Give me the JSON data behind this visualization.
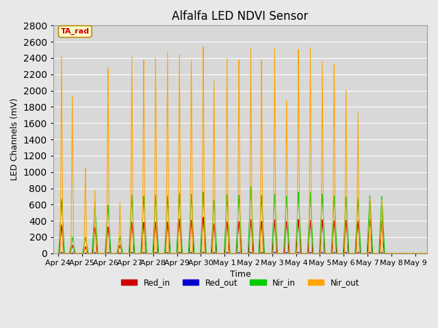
{
  "title": "Alfalfa LED NDVI Sensor",
  "xlabel": "Time",
  "ylabel": "LED Channels (mV)",
  "ylim": [
    0,
    2800
  ],
  "background_color": "#e8e8e8",
  "plot_bg_color": "#d8d8d8",
  "legend_labels": [
    "Red_in",
    "Red_out",
    "Nir_in",
    "Nir_out"
  ],
  "legend_colors": [
    "#cc0000",
    "#0000cc",
    "#00cc00",
    "#ffa500"
  ],
  "annotation_text": "TA_rad",
  "annotation_color": "#cc0000",
  "annotation_bg": "#ffffcc",
  "title_fontsize": 12,
  "axis_label_fontsize": 9,
  "tick_label_fontsize": 8,
  "x_tick_labels": [
    "Apr 24",
    "Apr 25",
    "Apr 26",
    "Apr 27",
    "Apr 28",
    "Apr 29",
    "Apr 30",
    "May 1",
    "May 2",
    "May 3",
    "May 4",
    "May 5",
    "May 6",
    "May 7",
    "May 8",
    "May 9"
  ],
  "x_tick_positions": [
    0,
    1,
    2,
    3,
    4,
    5,
    6,
    7,
    8,
    9,
    10,
    11,
    12,
    13,
    14,
    15
  ],
  "nir_out_peaks": [
    [
      0.15,
      2430
    ],
    [
      0.6,
      1950
    ],
    [
      1.15,
      1100
    ],
    [
      1.55,
      780
    ],
    [
      2.1,
      2350
    ],
    [
      2.6,
      630
    ],
    [
      3.1,
      2460
    ],
    [
      3.6,
      2480
    ],
    [
      4.1,
      2460
    ],
    [
      4.6,
      2480
    ],
    [
      5.1,
      2500
    ],
    [
      5.6,
      2490
    ],
    [
      6.1,
      2600
    ],
    [
      6.55,
      2190
    ],
    [
      7.1,
      2460
    ],
    [
      7.6,
      2490
    ],
    [
      8.1,
      2570
    ],
    [
      8.55,
      2440
    ],
    [
      9.1,
      2590
    ],
    [
      9.6,
      1960
    ],
    [
      10.1,
      2550
    ],
    [
      10.6,
      2540
    ],
    [
      11.1,
      2430
    ],
    [
      11.6,
      2420
    ],
    [
      12.1,
      2040
    ],
    [
      12.6,
      1760
    ],
    [
      13.1,
      700
    ],
    [
      13.6,
      680
    ]
  ],
  "nir_in_peaks": [
    [
      0.15,
      670
    ],
    [
      0.6,
      200
    ],
    [
      1.15,
      200
    ],
    [
      1.55,
      610
    ],
    [
      2.1,
      600
    ],
    [
      2.6,
      200
    ],
    [
      3.1,
      720
    ],
    [
      3.6,
      720
    ],
    [
      4.1,
      720
    ],
    [
      4.6,
      710
    ],
    [
      5.1,
      750
    ],
    [
      5.6,
      740
    ],
    [
      6.1,
      760
    ],
    [
      6.55,
      660
    ],
    [
      7.1,
      730
    ],
    [
      7.6,
      730
    ],
    [
      8.1,
      820
    ],
    [
      8.55,
      720
    ],
    [
      9.1,
      740
    ],
    [
      9.6,
      720
    ],
    [
      10.1,
      760
    ],
    [
      10.6,
      750
    ],
    [
      11.1,
      740
    ],
    [
      11.6,
      720
    ],
    [
      12.1,
      700
    ],
    [
      12.6,
      680
    ],
    [
      13.1,
      720
    ],
    [
      13.6,
      710
    ]
  ],
  "red_in_peaks": [
    [
      0.15,
      350
    ],
    [
      0.6,
      100
    ],
    [
      1.15,
      80
    ],
    [
      1.55,
      320
    ],
    [
      2.1,
      330
    ],
    [
      2.6,
      100
    ],
    [
      3.1,
      390
    ],
    [
      3.6,
      390
    ],
    [
      4.1,
      390
    ],
    [
      4.6,
      390
    ],
    [
      5.1,
      430
    ],
    [
      5.6,
      420
    ],
    [
      6.1,
      450
    ],
    [
      6.55,
      370
    ],
    [
      7.1,
      400
    ],
    [
      7.6,
      400
    ],
    [
      8.1,
      420
    ],
    [
      8.55,
      400
    ],
    [
      9.1,
      420
    ],
    [
      9.6,
      400
    ],
    [
      10.1,
      420
    ],
    [
      10.6,
      410
    ],
    [
      11.1,
      420
    ],
    [
      11.6,
      410
    ],
    [
      12.1,
      410
    ],
    [
      12.6,
      400
    ],
    [
      13.1,
      420
    ],
    [
      13.6,
      410
    ]
  ]
}
